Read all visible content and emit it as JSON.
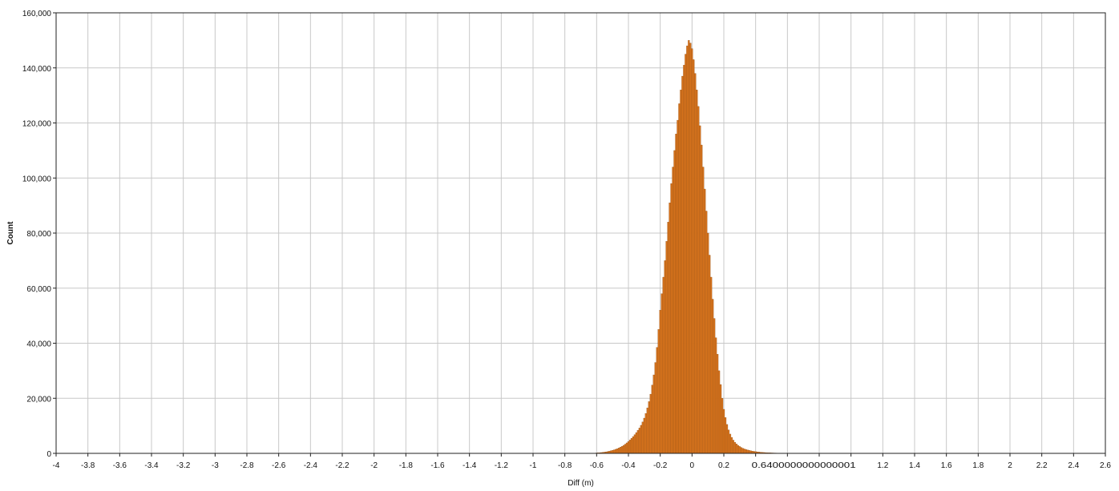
{
  "chart_data": {
    "type": "bar",
    "title": "",
    "xlabel": "Diff (m)",
    "ylabel": "Count",
    "xlim": [
      -4,
      2.6
    ],
    "ylim": [
      0,
      160000
    ],
    "grid": true,
    "bar_color": "#D9741C",
    "bar_edge_color": "#8A4A12",
    "x_ticks": [
      {
        "value": -4,
        "label": "-4"
      },
      {
        "value": -3.8,
        "label": "-3.8"
      },
      {
        "value": -3.6,
        "label": "-3.6"
      },
      {
        "value": -3.4,
        "label": "-3.4"
      },
      {
        "value": -3.2,
        "label": "-3.2"
      },
      {
        "value": -3,
        "label": "-3"
      },
      {
        "value": -2.8,
        "label": "-2.8"
      },
      {
        "value": -2.6,
        "label": "-2.6"
      },
      {
        "value": -2.4,
        "label": "-2.4"
      },
      {
        "value": -2.2,
        "label": "-2.2"
      },
      {
        "value": -2,
        "label": "-2"
      },
      {
        "value": -1.8,
        "label": "-1.8"
      },
      {
        "value": -1.6,
        "label": "-1.6"
      },
      {
        "value": -1.4,
        "label": "-1.4"
      },
      {
        "value": -1.2,
        "label": "-1.2"
      },
      {
        "value": -1,
        "label": "-1"
      },
      {
        "value": -0.8,
        "label": "-0.8"
      },
      {
        "value": -0.6,
        "label": "-0.6"
      },
      {
        "value": -0.4,
        "label": "-0.4"
      },
      {
        "value": -0.2,
        "label": "-0.2"
      },
      {
        "value": 0,
        "label": "0"
      },
      {
        "value": 0.2,
        "label": "0.2"
      },
      {
        "value": 0.4,
        "label": "0.4"
      },
      {
        "value": 0.6,
        "label": "0.6"
      },
      {
        "value": 0.8,
        "label": "0.8"
      },
      {
        "value": 1,
        "label": "1"
      },
      {
        "value": 1.2,
        "label": "1.2"
      },
      {
        "value": 1.4,
        "label": "1.4"
      },
      {
        "value": 1.6,
        "label": "1.6"
      },
      {
        "value": 1.8,
        "label": "1.8"
      },
      {
        "value": 2,
        "label": "2"
      },
      {
        "value": 2.2,
        "label": "2.2"
      },
      {
        "value": 2.4,
        "label": "2.4"
      },
      {
        "value": 2.6,
        "label": "2.6"
      }
    ],
    "overlap_label": {
      "value": 0.4,
      "label": "0.6400000000000001"
    },
    "y_ticks": [
      {
        "value": 0,
        "label": "0"
      },
      {
        "value": 20000,
        "label": "20,000"
      },
      {
        "value": 40000,
        "label": "40,000"
      },
      {
        "value": 60000,
        "label": "60,000"
      },
      {
        "value": 80000,
        "label": "80,000"
      },
      {
        "value": 100000,
        "label": "100,000"
      },
      {
        "value": 120000,
        "label": "120,000"
      },
      {
        "value": 140000,
        "label": "140,000"
      },
      {
        "value": 160000,
        "label": "160,000"
      }
    ],
    "bin_width": 0.01,
    "bins_x": [
      -0.6,
      -0.59,
      -0.58,
      -0.57,
      -0.56,
      -0.55,
      -0.54,
      -0.53,
      -0.52,
      -0.51,
      -0.5,
      -0.49,
      -0.48,
      -0.47,
      -0.46,
      -0.45,
      -0.44,
      -0.43,
      -0.42,
      -0.41,
      -0.4,
      -0.39,
      -0.38,
      -0.37,
      -0.36,
      -0.35,
      -0.34,
      -0.33,
      -0.32,
      -0.31,
      -0.3,
      -0.29,
      -0.28,
      -0.27,
      -0.26,
      -0.25,
      -0.24,
      -0.23,
      -0.22,
      -0.21,
      -0.2,
      -0.19,
      -0.18,
      -0.17,
      -0.16,
      -0.15,
      -0.14,
      -0.13,
      -0.12,
      -0.11,
      -0.1,
      -0.09,
      -0.08,
      -0.07,
      -0.06,
      -0.05,
      -0.04,
      -0.03,
      -0.02,
      -0.01,
      0,
      0.01,
      0.02,
      0.03,
      0.04,
      0.05,
      0.06,
      0.07,
      0.08,
      0.09,
      0.1,
      0.11,
      0.12,
      0.13,
      0.14,
      0.15,
      0.16,
      0.17,
      0.18,
      0.19,
      0.2,
      0.21,
      0.22,
      0.23,
      0.24,
      0.25,
      0.26,
      0.27,
      0.28,
      0.29,
      0.3,
      0.31,
      0.32,
      0.33,
      0.34,
      0.35,
      0.36,
      0.37,
      0.38,
      0.39,
      0.4,
      0.41,
      0.42,
      0.43,
      0.44,
      0.45,
      0.46,
      0.47,
      0.48,
      0.49,
      0.5,
      0.51,
      0.52,
      0.53,
      0.54,
      0.55,
      0.56,
      0.57,
      0.58,
      0.59,
      0.6
    ],
    "bins_count": [
      150,
      190,
      240,
      300,
      370,
      450,
      550,
      660,
      790,
      940,
      1100,
      1280,
      1480,
      1700,
      1950,
      2230,
      2550,
      2920,
      3340,
      3800,
      4300,
      4850,
      5450,
      6100,
      6800,
      7550,
      8350,
      9200,
      10200,
      11400,
      12800,
      14500,
      16500,
      18800,
      21500,
      24800,
      28500,
      33000,
      38500,
      45000,
      52000,
      58000,
      64000,
      70000,
      77000,
      84000,
      91000,
      98000,
      104000,
      110000,
      116000,
      121000,
      127000,
      132000,
      137000,
      141000,
      145000,
      148000,
      150000,
      149000,
      147000,
      143000,
      138000,
      132000,
      126000,
      119000,
      112000,
      104000,
      96000,
      88000,
      80000,
      72000,
      64000,
      56000,
      49000,
      42000,
      36000,
      30000,
      25000,
      20000,
      16000,
      13000,
      10500,
      8500,
      7000,
      5800,
      4800,
      4000,
      3400,
      2900,
      2500,
      2150,
      1850,
      1600,
      1400,
      1220,
      1070,
      940,
      820,
      720,
      630,
      550,
      480,
      420,
      370,
      320,
      280,
      250,
      220,
      190,
      170,
      150,
      130,
      115,
      100,
      90,
      80,
      70,
      62,
      55,
      48
    ]
  }
}
